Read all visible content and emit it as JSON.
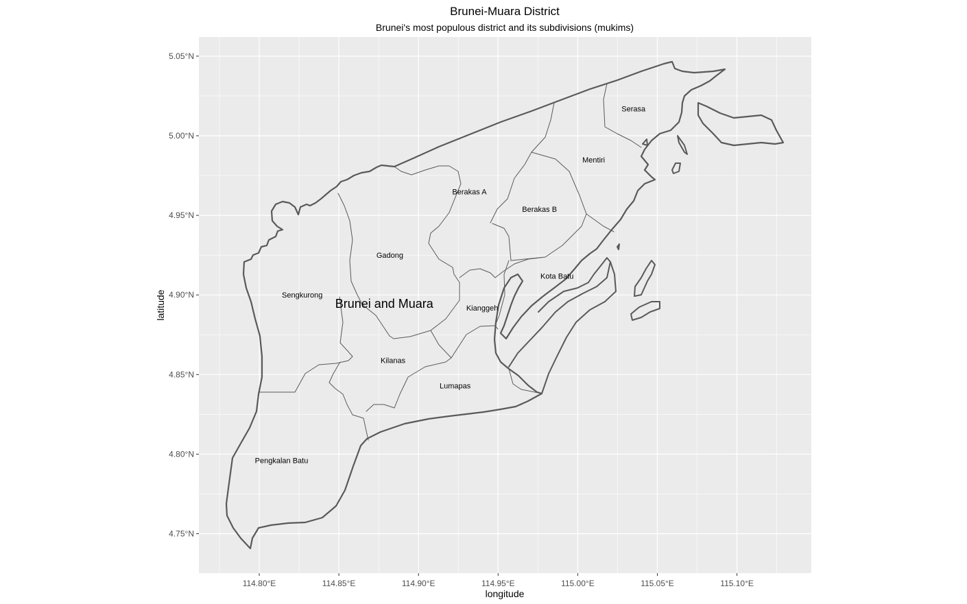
{
  "title": "Brunei-Muara District",
  "subtitle": "Brunei's most populous district and its subdivisions (mukims)",
  "x_axis": {
    "title": "longitude",
    "ticks": [
      {
        "value": 114.8,
        "label": "114.80°E"
      },
      {
        "value": 114.85,
        "label": "114.85°E"
      },
      {
        "value": 114.9,
        "label": "114.90°E"
      },
      {
        "value": 114.95,
        "label": "114.95°E"
      },
      {
        "value": 115.0,
        "label": "115.00°E"
      },
      {
        "value": 115.05,
        "label": "115.05°E"
      },
      {
        "value": 115.1,
        "label": "115.10°E"
      }
    ]
  },
  "y_axis": {
    "title": "latitude",
    "ticks": [
      {
        "value": 4.75,
        "label": "4.75°N"
      },
      {
        "value": 4.8,
        "label": "4.80°N"
      },
      {
        "value": 4.85,
        "label": "4.85°N"
      },
      {
        "value": 4.9,
        "label": "4.90°N"
      },
      {
        "value": 4.95,
        "label": "4.95°N"
      },
      {
        "value": 5.0,
        "label": "5.00°N"
      },
      {
        "value": 5.05,
        "label": "5.05°N"
      }
    ]
  },
  "district_label": "Brunei and Muara",
  "mukims": [
    {
      "name": "Serasa",
      "lon": 115.035,
      "lat": 5.017
    },
    {
      "name": "Mentiri",
      "lon": 115.01,
      "lat": 4.985
    },
    {
      "name": "Berakas A",
      "lon": 114.932,
      "lat": 4.965
    },
    {
      "name": "Berakas B",
      "lon": 114.976,
      "lat": 4.954
    },
    {
      "name": "Gadong",
      "lon": 114.882,
      "lat": 4.925
    },
    {
      "name": "Kota Batu",
      "lon": 114.987,
      "lat": 4.912
    },
    {
      "name": "Sengkurong",
      "lon": 114.827,
      "lat": 4.9
    },
    {
      "name": "Kianggeh",
      "lon": 114.94,
      "lat": 4.892
    },
    {
      "name": "Kilanas",
      "lon": 114.884,
      "lat": 4.859
    },
    {
      "name": "Lumapas",
      "lon": 114.923,
      "lat": 4.843
    },
    {
      "name": "Pengkalan Batu",
      "lon": 114.814,
      "lat": 4.796
    }
  ],
  "colors": {
    "panel_background": "#ebebeb",
    "grid": "#ffffff",
    "outline": "#595959"
  }
}
